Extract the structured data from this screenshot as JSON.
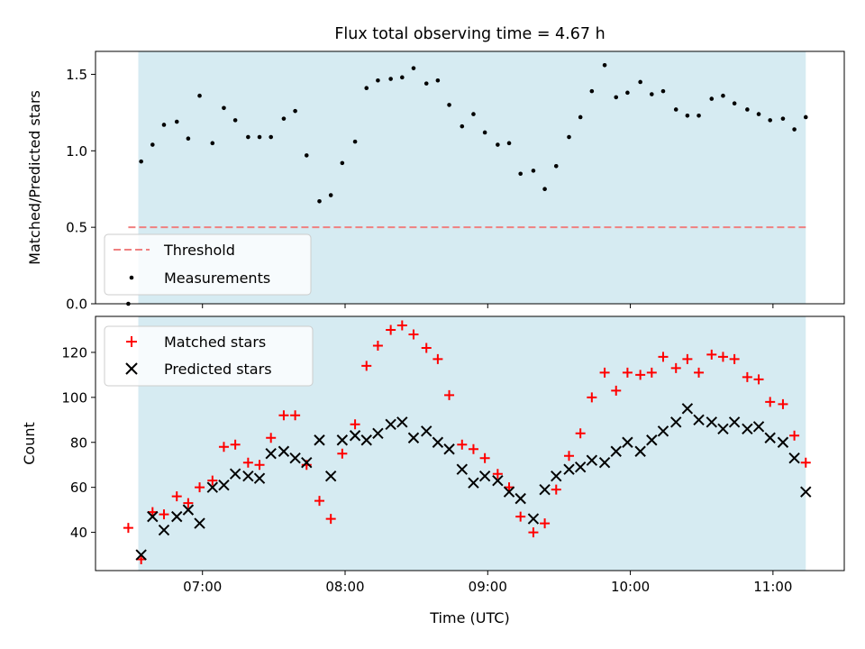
{
  "chart_data": [
    {
      "type": "scatter",
      "title": "Flux total observing time = 4.67 h",
      "ylabel": "Matched/Predicted stars",
      "xlabel": "",
      "ylim": [
        0,
        1.65
      ],
      "yticks": [
        "0.0",
        "0.5",
        "1.0",
        "1.5"
      ],
      "legend_placement": "lower-left",
      "shaded_interval_hours": [
        6.55,
        11.23
      ],
      "shade_color": "#add8e6",
      "threshold": {
        "name": "Threshold",
        "value": 0.5,
        "x_range_hours": [
          6.48,
          11.23
        ],
        "color": "#f08080"
      },
      "series": [
        {
          "name": "Measurements",
          "color": "#000000",
          "x_hours": [
            6.48,
            6.57,
            6.65,
            6.73,
            6.82,
            6.9,
            6.98,
            7.07,
            7.15,
            7.23,
            7.32,
            7.4,
            7.48,
            7.57,
            7.65,
            7.73,
            7.82,
            7.9,
            7.98,
            8.07,
            8.15,
            8.23,
            8.32,
            8.4,
            8.48,
            8.57,
            8.65,
            8.73,
            8.82,
            8.9,
            8.98,
            9.07,
            9.15,
            9.23,
            9.32,
            9.4,
            9.48,
            9.57,
            9.65,
            9.73,
            9.82,
            9.9,
            9.98,
            10.07,
            10.15,
            10.23,
            10.32,
            10.4,
            10.48,
            10.57,
            10.65,
            10.73,
            10.82,
            10.9,
            10.98,
            11.07,
            11.15,
            11.23
          ],
          "y": [
            0.0,
            0.93,
            1.04,
            1.17,
            1.19,
            1.08,
            1.36,
            1.05,
            1.28,
            1.2,
            1.09,
            1.09,
            1.09,
            1.21,
            1.26,
            0.97,
            0.67,
            0.71,
            0.92,
            1.06,
            1.41,
            1.46,
            1.47,
            1.48,
            1.54,
            1.44,
            1.46,
            1.3,
            1.16,
            1.24,
            1.12,
            1.04,
            1.05,
            0.85,
            0.87,
            0.75,
            0.9,
            1.09,
            1.22,
            1.39,
            1.56,
            1.35,
            1.38,
            1.45,
            1.37,
            1.39,
            1.27,
            1.23,
            1.23,
            1.34,
            1.36,
            1.31,
            1.27,
            1.24,
            1.2,
            1.21,
            1.14,
            1.22
          ]
        }
      ]
    },
    {
      "type": "scatter",
      "title": "",
      "xlabel": "Time (UTC)",
      "ylabel": "Count",
      "ylim": [
        23,
        136
      ],
      "yticks": [
        "40",
        "60",
        "80",
        "100",
        "120"
      ],
      "xlim_hours": [
        6.25,
        11.5
      ],
      "xticks": [
        "07:00",
        "08:00",
        "09:00",
        "10:00",
        "11:00"
      ],
      "legend_placement": "upper-left",
      "shaded_interval_hours": [
        6.55,
        11.23
      ],
      "series": [
        {
          "name": "Matched stars",
          "marker": "+",
          "color": "#ff0000",
          "x_hours": [
            6.48,
            6.57,
            6.65,
            6.73,
            6.82,
            6.9,
            6.98,
            7.07,
            7.15,
            7.23,
            7.32,
            7.4,
            7.48,
            7.57,
            7.65,
            7.73,
            7.82,
            7.9,
            7.98,
            8.07,
            8.15,
            8.23,
            8.32,
            8.4,
            8.48,
            8.57,
            8.65,
            8.73,
            8.82,
            8.9,
            8.98,
            9.07,
            9.15,
            9.23,
            9.32,
            9.4,
            9.48,
            9.57,
            9.65,
            9.73,
            9.82,
            9.9,
            9.98,
            10.07,
            10.15,
            10.23,
            10.32,
            10.4,
            10.48,
            10.57,
            10.65,
            10.73,
            10.82,
            10.9,
            10.98,
            11.07,
            11.15,
            11.23
          ],
          "y": [
            42,
            28,
            49,
            48,
            56,
            53,
            60,
            63,
            78,
            79,
            71,
            70,
            82,
            92,
            92,
            70,
            54,
            46,
            75,
            88,
            114,
            123,
            130,
            132,
            128,
            122,
            117,
            101,
            79,
            77,
            73,
            66,
            60,
            47,
            40,
            44,
            59,
            74,
            84,
            100,
            111,
            103,
            111,
            110,
            111,
            118,
            113,
            117,
            111,
            119,
            118,
            117,
            109,
            108,
            98,
            97,
            83,
            71
          ]
        },
        {
          "name": "Predicted stars",
          "marker": "x",
          "color": "#000000",
          "x_hours": [
            6.57,
            6.65,
            6.73,
            6.82,
            6.9,
            6.98,
            7.07,
            7.15,
            7.23,
            7.32,
            7.4,
            7.48,
            7.57,
            7.65,
            7.73,
            7.82,
            7.9,
            7.98,
            8.07,
            8.15,
            8.23,
            8.32,
            8.4,
            8.48,
            8.57,
            8.65,
            8.73,
            8.82,
            8.9,
            8.98,
            9.07,
            9.15,
            9.23,
            9.32,
            9.4,
            9.48,
            9.57,
            9.65,
            9.73,
            9.82,
            9.9,
            9.98,
            10.07,
            10.15,
            10.23,
            10.32,
            10.4,
            10.48,
            10.57,
            10.65,
            10.73,
            10.82,
            10.9,
            10.98,
            11.07,
            11.15,
            11.23
          ],
          "y": [
            30,
            47,
            41,
            47,
            50,
            44,
            60,
            61,
            66,
            65,
            64,
            75,
            76,
            73,
            71,
            81,
            65,
            81,
            83,
            81,
            84,
            88,
            89,
            82,
            85,
            80,
            77,
            68,
            62,
            65,
            63,
            58,
            55,
            46,
            59,
            65,
            68,
            69,
            72,
            71,
            76,
            80,
            76,
            81,
            85,
            89,
            95,
            90,
            89,
            86,
            89,
            86,
            87,
            82,
            80,
            73,
            58
          ]
        }
      ]
    }
  ]
}
